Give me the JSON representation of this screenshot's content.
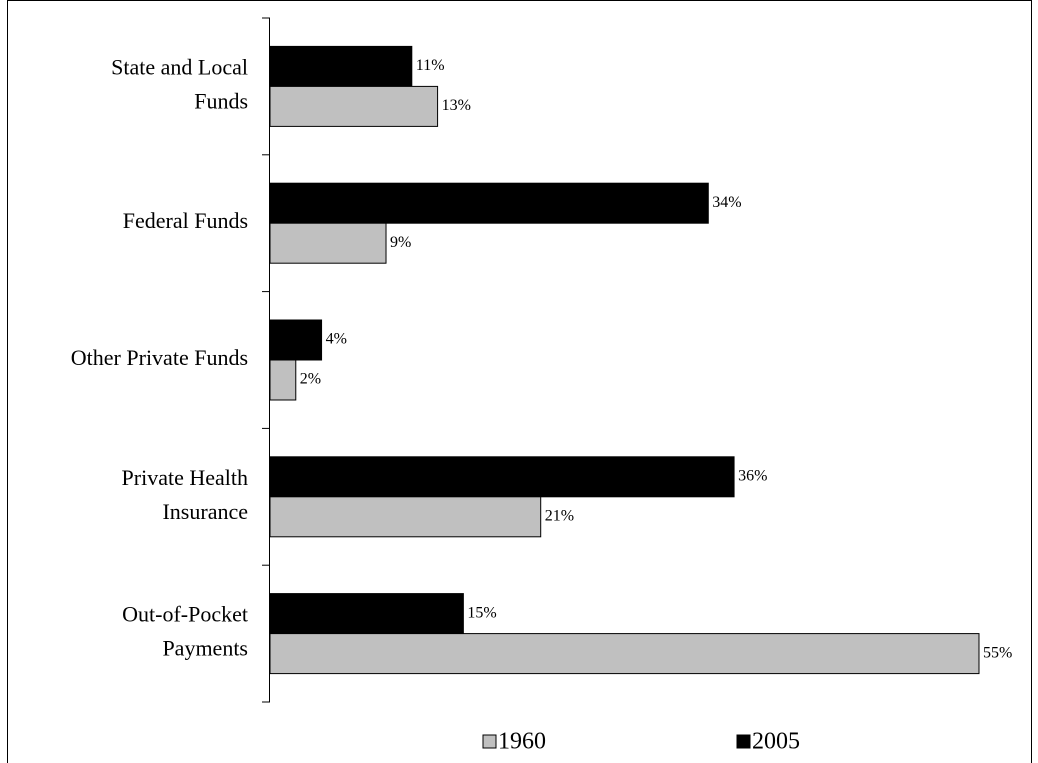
{
  "chart_data": {
    "type": "bar",
    "orientation": "horizontal",
    "categories": [
      "State and Local\nFunds",
      "Federal Funds",
      "Other Private Funds",
      "Private Health\nInsurance",
      "Out-of-Pocket\nPayments"
    ],
    "series": [
      {
        "name": "2005",
        "color": "#000000",
        "values": [
          11,
          34,
          4,
          36,
          15
        ],
        "value_labels": [
          "11%",
          "34%",
          "4%",
          "36%",
          "15%"
        ]
      },
      {
        "name": "1960",
        "color": "#c0c0c0",
        "values": [
          13,
          9,
          2,
          21,
          55
        ],
        "value_labels": [
          "13%",
          "9%",
          "2%",
          "21%",
          "55%"
        ]
      }
    ],
    "legend": "bottom"
  }
}
